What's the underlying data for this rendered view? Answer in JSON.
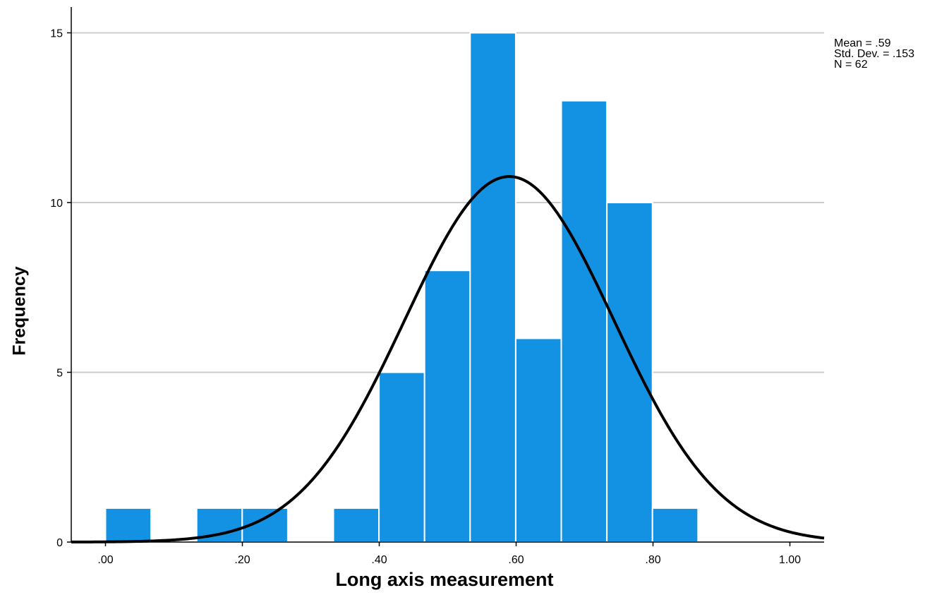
{
  "chart_data": {
    "type": "bar",
    "subtype": "histogram",
    "xlabel": "Long axis measurement",
    "ylabel": "Frequency",
    "xlim": [
      -0.05,
      1.05
    ],
    "ylim": [
      0,
      16
    ],
    "x_ticks": [
      0,
      0.2,
      0.4,
      0.6,
      0.8,
      1.0
    ],
    "x_tick_labels": [
      ".00",
      ".20",
      ".40",
      ".60",
      ".80",
      "1.00"
    ],
    "y_ticks": [
      0,
      5,
      10,
      15
    ],
    "y_tick_labels": [
      "0",
      "5",
      "10",
      "15"
    ],
    "grid": "horizontal",
    "bin_width": 0.0666,
    "bin_start": 0.0,
    "counts": [
      1,
      0,
      1,
      1,
      0,
      1,
      5,
      8,
      15,
      6,
      13,
      10,
      1
    ],
    "bar_color": "#1391E3",
    "normal_curve": {
      "mean": 0.59,
      "sd": 0.153,
      "n": 62,
      "color": "#000000"
    },
    "stats": {
      "mean_label": "Mean = .59",
      "sd_label": "Std. Dev. = .153",
      "n_label": "N = 62"
    }
  }
}
